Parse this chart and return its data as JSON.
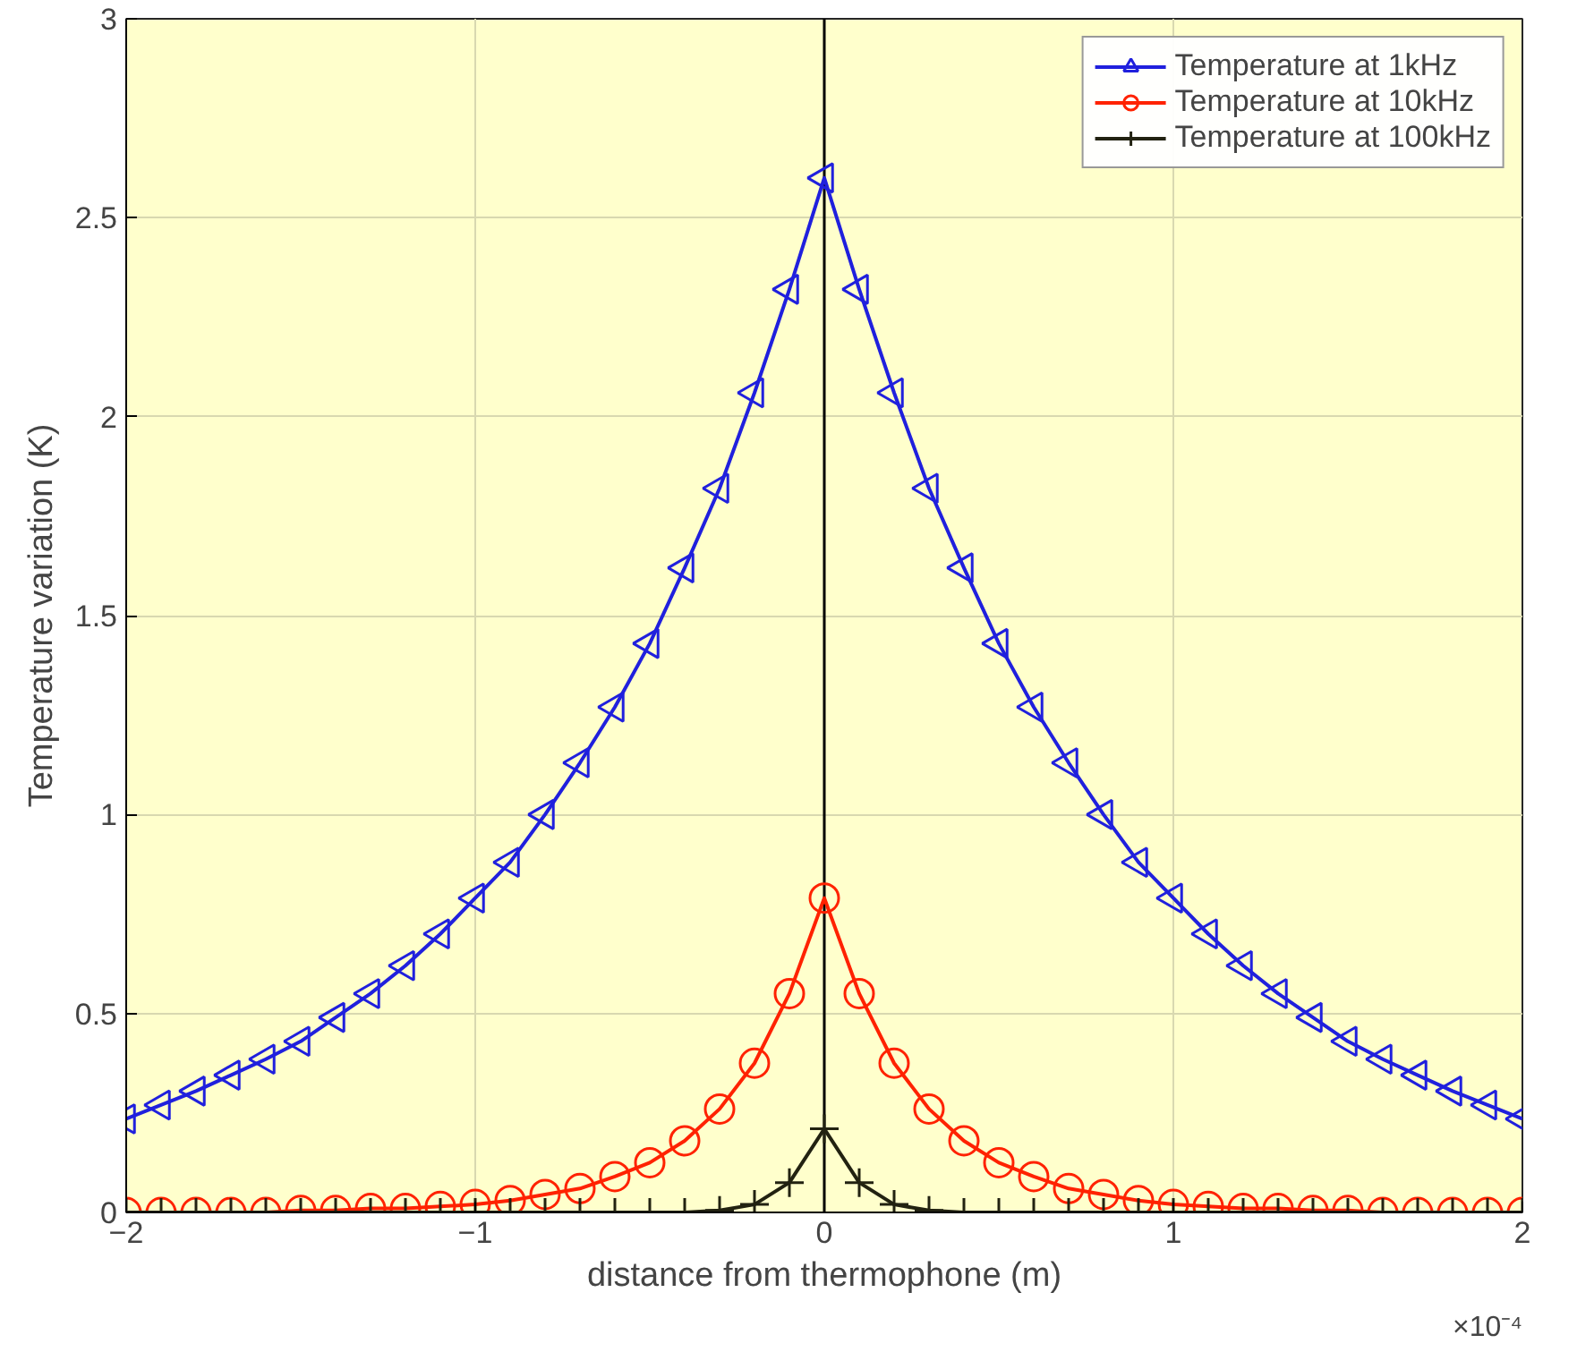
{
  "chart_data": {
    "type": "line",
    "xlabel": "distance from thermophone (m)",
    "ylabel": "Temperature variation (K)",
    "x": [
      -2,
      -1.9,
      -1.8,
      -1.7,
      -1.6,
      -1.5,
      -1.4,
      -1.3,
      -1.2,
      -1.1,
      -1,
      -0.9,
      -0.8,
      -0.7,
      -0.6,
      -0.5,
      -0.4,
      -0.3,
      -0.2,
      -0.1,
      0,
      0.1,
      0.2,
      0.3,
      0.4,
      0.5,
      0.6,
      0.7,
      0.8,
      0.9,
      1,
      1.1,
      1.2,
      1.3,
      1.4,
      1.5,
      1.6,
      1.7,
      1.8,
      1.9,
      2
    ],
    "series": [
      {
        "name": "Temperature at 1kHz",
        "color": "#2020dd",
        "marker": "triangle",
        "values": [
          0.235,
          0.27,
          0.305,
          0.345,
          0.385,
          0.43,
          0.49,
          0.55,
          0.62,
          0.7,
          0.79,
          0.88,
          1.0,
          1.13,
          1.27,
          1.43,
          1.62,
          1.82,
          2.06,
          2.32,
          2.6,
          2.32,
          2.06,
          1.82,
          1.62,
          1.43,
          1.27,
          1.13,
          1.0,
          0.88,
          0.79,
          0.7,
          0.62,
          0.55,
          0.49,
          0.43,
          0.385,
          0.345,
          0.305,
          0.27,
          0.235
        ]
      },
      {
        "name": "Temperature at 10kHz",
        "color": "#ff2200",
        "marker": "circle",
        "values": [
          0,
          0,
          0,
          0,
          0,
          0.005,
          0.005,
          0.01,
          0.01,
          0.015,
          0.02,
          0.03,
          0.045,
          0.06,
          0.09,
          0.125,
          0.18,
          0.26,
          0.375,
          0.55,
          0.79,
          0.55,
          0.375,
          0.26,
          0.18,
          0.125,
          0.09,
          0.06,
          0.045,
          0.03,
          0.02,
          0.015,
          0.01,
          0.01,
          0.005,
          0.005,
          0,
          0,
          0,
          0,
          0
        ]
      },
      {
        "name": "Temperature at 100kHz",
        "color": "#222211",
        "marker": "cross",
        "values": [
          0,
          0,
          0,
          0,
          0,
          0,
          0,
          0,
          0,
          0,
          0,
          0,
          0,
          0,
          0,
          0,
          0,
          0.005,
          0.02,
          0.075,
          0.21,
          0.075,
          0.02,
          0.005,
          0,
          0,
          0,
          0,
          0,
          0,
          0,
          0,
          0,
          0,
          0,
          0,
          0,
          0,
          0,
          0,
          0
        ]
      }
    ],
    "xlim": [
      -2,
      2
    ],
    "xticks": [
      -2,
      -1,
      0,
      1,
      2
    ],
    "ylim": [
      0,
      3
    ],
    "yticks": [
      0,
      0.5,
      1,
      1.5,
      2,
      2.5,
      3
    ],
    "ref_lines": [
      {
        "axis": "x",
        "value": 0,
        "color": "#000000"
      }
    ],
    "annotations": [
      "×10⁻⁴"
    ],
    "grid": true,
    "legend": "top right",
    "line_style": "solid"
  }
}
